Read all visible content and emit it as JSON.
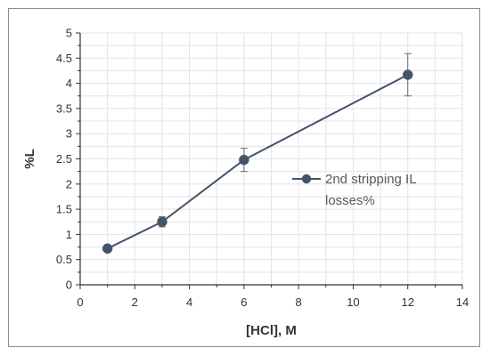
{
  "chart_data": {
    "type": "line",
    "xlabel": "[HCl], M",
    "ylabel": "%L",
    "xlim": [
      0,
      14
    ],
    "ylim": [
      0,
      5
    ],
    "xticks": [
      "0",
      "2",
      "4",
      "6",
      "8",
      "10",
      "12",
      "14"
    ],
    "yticks": [
      "0",
      "0.5",
      "1",
      "1.5",
      "2",
      "2.5",
      "3",
      "3.5",
      "4",
      "4.5",
      "5"
    ],
    "grid": true,
    "legend_position": "right",
    "series": [
      {
        "name": "2nd stripping IL losses%",
        "color": "#44546a",
        "x": [
          1,
          3,
          6,
          12
        ],
        "y": [
          0.72,
          1.25,
          2.48,
          4.17
        ],
        "error": [
          0.05,
          0.1,
          0.23,
          0.42
        ]
      }
    ]
  }
}
